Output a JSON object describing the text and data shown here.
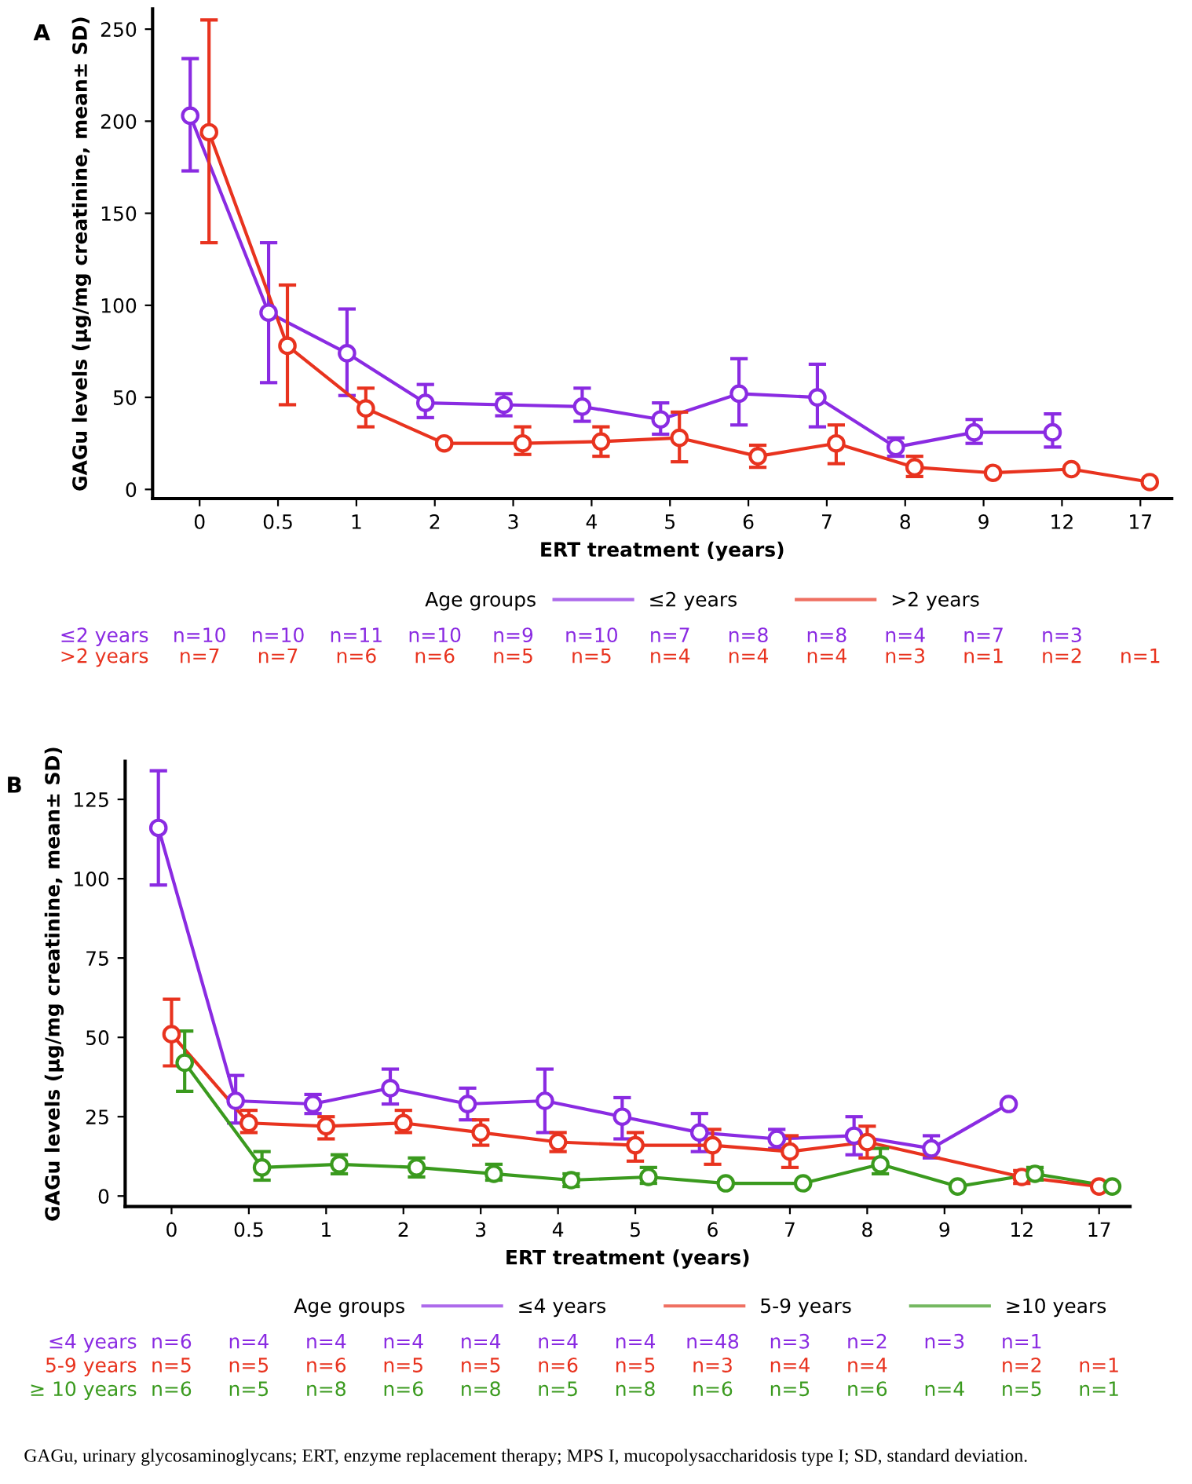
{
  "chart_data": [
    {
      "type": "line",
      "title": "A",
      "xlabel": "ERT treatment (years)",
      "ylabel": "GAGu levels (µg/mg creatinine, mean± SD)",
      "legend_title": "Age groups",
      "legend": "bottom",
      "marker": "circle",
      "categories": [
        "0",
        "0.5",
        "1",
        "2",
        "3",
        "4",
        "5",
        "6",
        "7",
        "8",
        "9",
        "12",
        "17"
      ],
      "ylim": [
        -5,
        261
      ],
      "yticks": [
        0,
        50,
        100,
        150,
        200,
        250
      ],
      "series": [
        {
          "name": "≤2 years",
          "color": "#8a2be2",
          "values": [
            203,
            96,
            74,
            47,
            46,
            45,
            38,
            52,
            50,
            23,
            31,
            31,
            null
          ],
          "errors": [
            [
              173,
              234
            ],
            [
              58,
              134
            ],
            [
              51,
              98
            ],
            [
              39,
              57
            ],
            [
              40,
              52
            ],
            [
              37,
              55
            ],
            [
              30,
              47
            ],
            [
              35,
              71
            ],
            [
              34,
              68
            ],
            [
              18,
              28
            ],
            [
              25,
              38
            ],
            [
              23,
              41
            ],
            null
          ]
        },
        {
          "name": ">2 years",
          "color": "#e8331f",
          "values": [
            194,
            78,
            44,
            25,
            25,
            26,
            28,
            18,
            25,
            12,
            9,
            11,
            4
          ],
          "errors": [
            [
              134,
              255
            ],
            [
              46,
              111
            ],
            [
              34,
              55
            ],
            null,
            [
              19,
              34
            ],
            [
              18,
              34
            ],
            [
              15,
              42
            ],
            [
              12,
              24
            ],
            [
              14,
              35
            ],
            [
              7,
              18
            ],
            null,
            null,
            null
          ]
        }
      ],
      "annotations": [
        "≤2 years",
        "n=10",
        "n=10",
        "n=11",
        "n=10",
        "n=9",
        "n=10",
        "n=7",
        "n=8",
        "n=8",
        "n=4",
        "n=7",
        "n=3",
        ">2 years",
        "n=7",
        "n=7",
        "n=6",
        "n=6",
        "n=5",
        "n=5",
        "n=4",
        "n=4",
        "n=4",
        "n=3",
        "n=1",
        "n=2",
        "n=1"
      ]
    },
    {
      "type": "line",
      "title": "B",
      "xlabel": "ERT treatment (years)",
      "ylabel": "GAGu levels (µg/mg creatinine, mean± SD)",
      "legend_title": "Age groups",
      "legend": "bottom",
      "marker": "circle",
      "categories": [
        "0",
        "0.5",
        "1",
        "2",
        "3",
        "4",
        "5",
        "6",
        "7",
        "8",
        "9",
        "12",
        "17"
      ],
      "ylim": [
        -3.3,
        137
      ],
      "yticks": [
        0,
        25,
        50,
        75,
        100,
        125
      ],
      "series": [
        {
          "name": "≤4 years",
          "color": "#8a2be2",
          "values": [
            116,
            30,
            29,
            34,
            29,
            30,
            25,
            20,
            18,
            19,
            15,
            29,
            null
          ],
          "errors": [
            [
              98,
              134
            ],
            [
              23,
              38
            ],
            [
              26,
              32
            ],
            [
              29,
              40
            ],
            [
              24,
              34
            ],
            [
              20,
              40
            ],
            [
              18,
              31
            ],
            [
              14,
              26
            ],
            [
              15,
              21
            ],
            [
              13,
              25
            ],
            [
              12,
              19
            ],
            null,
            null
          ]
        },
        {
          "name": "5-9 years",
          "color": "#e8331f",
          "values": [
            51,
            23,
            22,
            23,
            20,
            17,
            16,
            16,
            14,
            17,
            null,
            6,
            3
          ],
          "errors": [
            [
              41,
              62
            ],
            [
              20,
              27
            ],
            [
              18,
              25
            ],
            [
              20,
              27
            ],
            [
              16,
              24
            ],
            [
              14,
              20
            ],
            [
              11,
              20
            ],
            [
              10,
              21
            ],
            [
              9,
              19
            ],
            [
              12,
              22
            ],
            null,
            [
              4,
              8
            ],
            null
          ]
        },
        {
          "name": "≥10 years",
          "color": "#3a9a1e",
          "values": [
            42,
            9,
            10,
            9,
            7,
            5,
            6,
            4,
            4,
            10,
            3,
            7,
            3
          ],
          "errors": [
            [
              33,
              52
            ],
            [
              5,
              14
            ],
            [
              7,
              13
            ],
            [
              6,
              12
            ],
            [
              5,
              10
            ],
            [
              3,
              7
            ],
            [
              4,
              9
            ],
            null,
            null,
            [
              7,
              15
            ],
            null,
            [
              5,
              9
            ],
            null
          ]
        }
      ],
      "annotations": [
        "≤4 years",
        "n=6",
        "n=4",
        "n=4",
        "n=4",
        "n=4",
        "n=4",
        "n=4",
        "n=48",
        "n=3",
        "n=2",
        "n=3",
        "n=1",
        "5-9 years",
        "n=5",
        "n=5",
        "n=6",
        "n=5",
        "n=5",
        "n=6",
        "n=5",
        "n=3",
        "n=4",
        "n=4",
        "n=2",
        "n=1",
        "≥ 10 years",
        "n=6",
        "n=5",
        "n=8",
        "n=6",
        "n=8",
        "n=5",
        "n=8",
        "n=6",
        "n=5",
        "n=6",
        "n=4",
        "n=5",
        "n=1",
        "GAGu, urinary glycosaminoglycans; ERT, enzyme replacement therapy; MPS I, mucopolysaccharidosis type I; SD, standard deviation."
      ]
    }
  ]
}
